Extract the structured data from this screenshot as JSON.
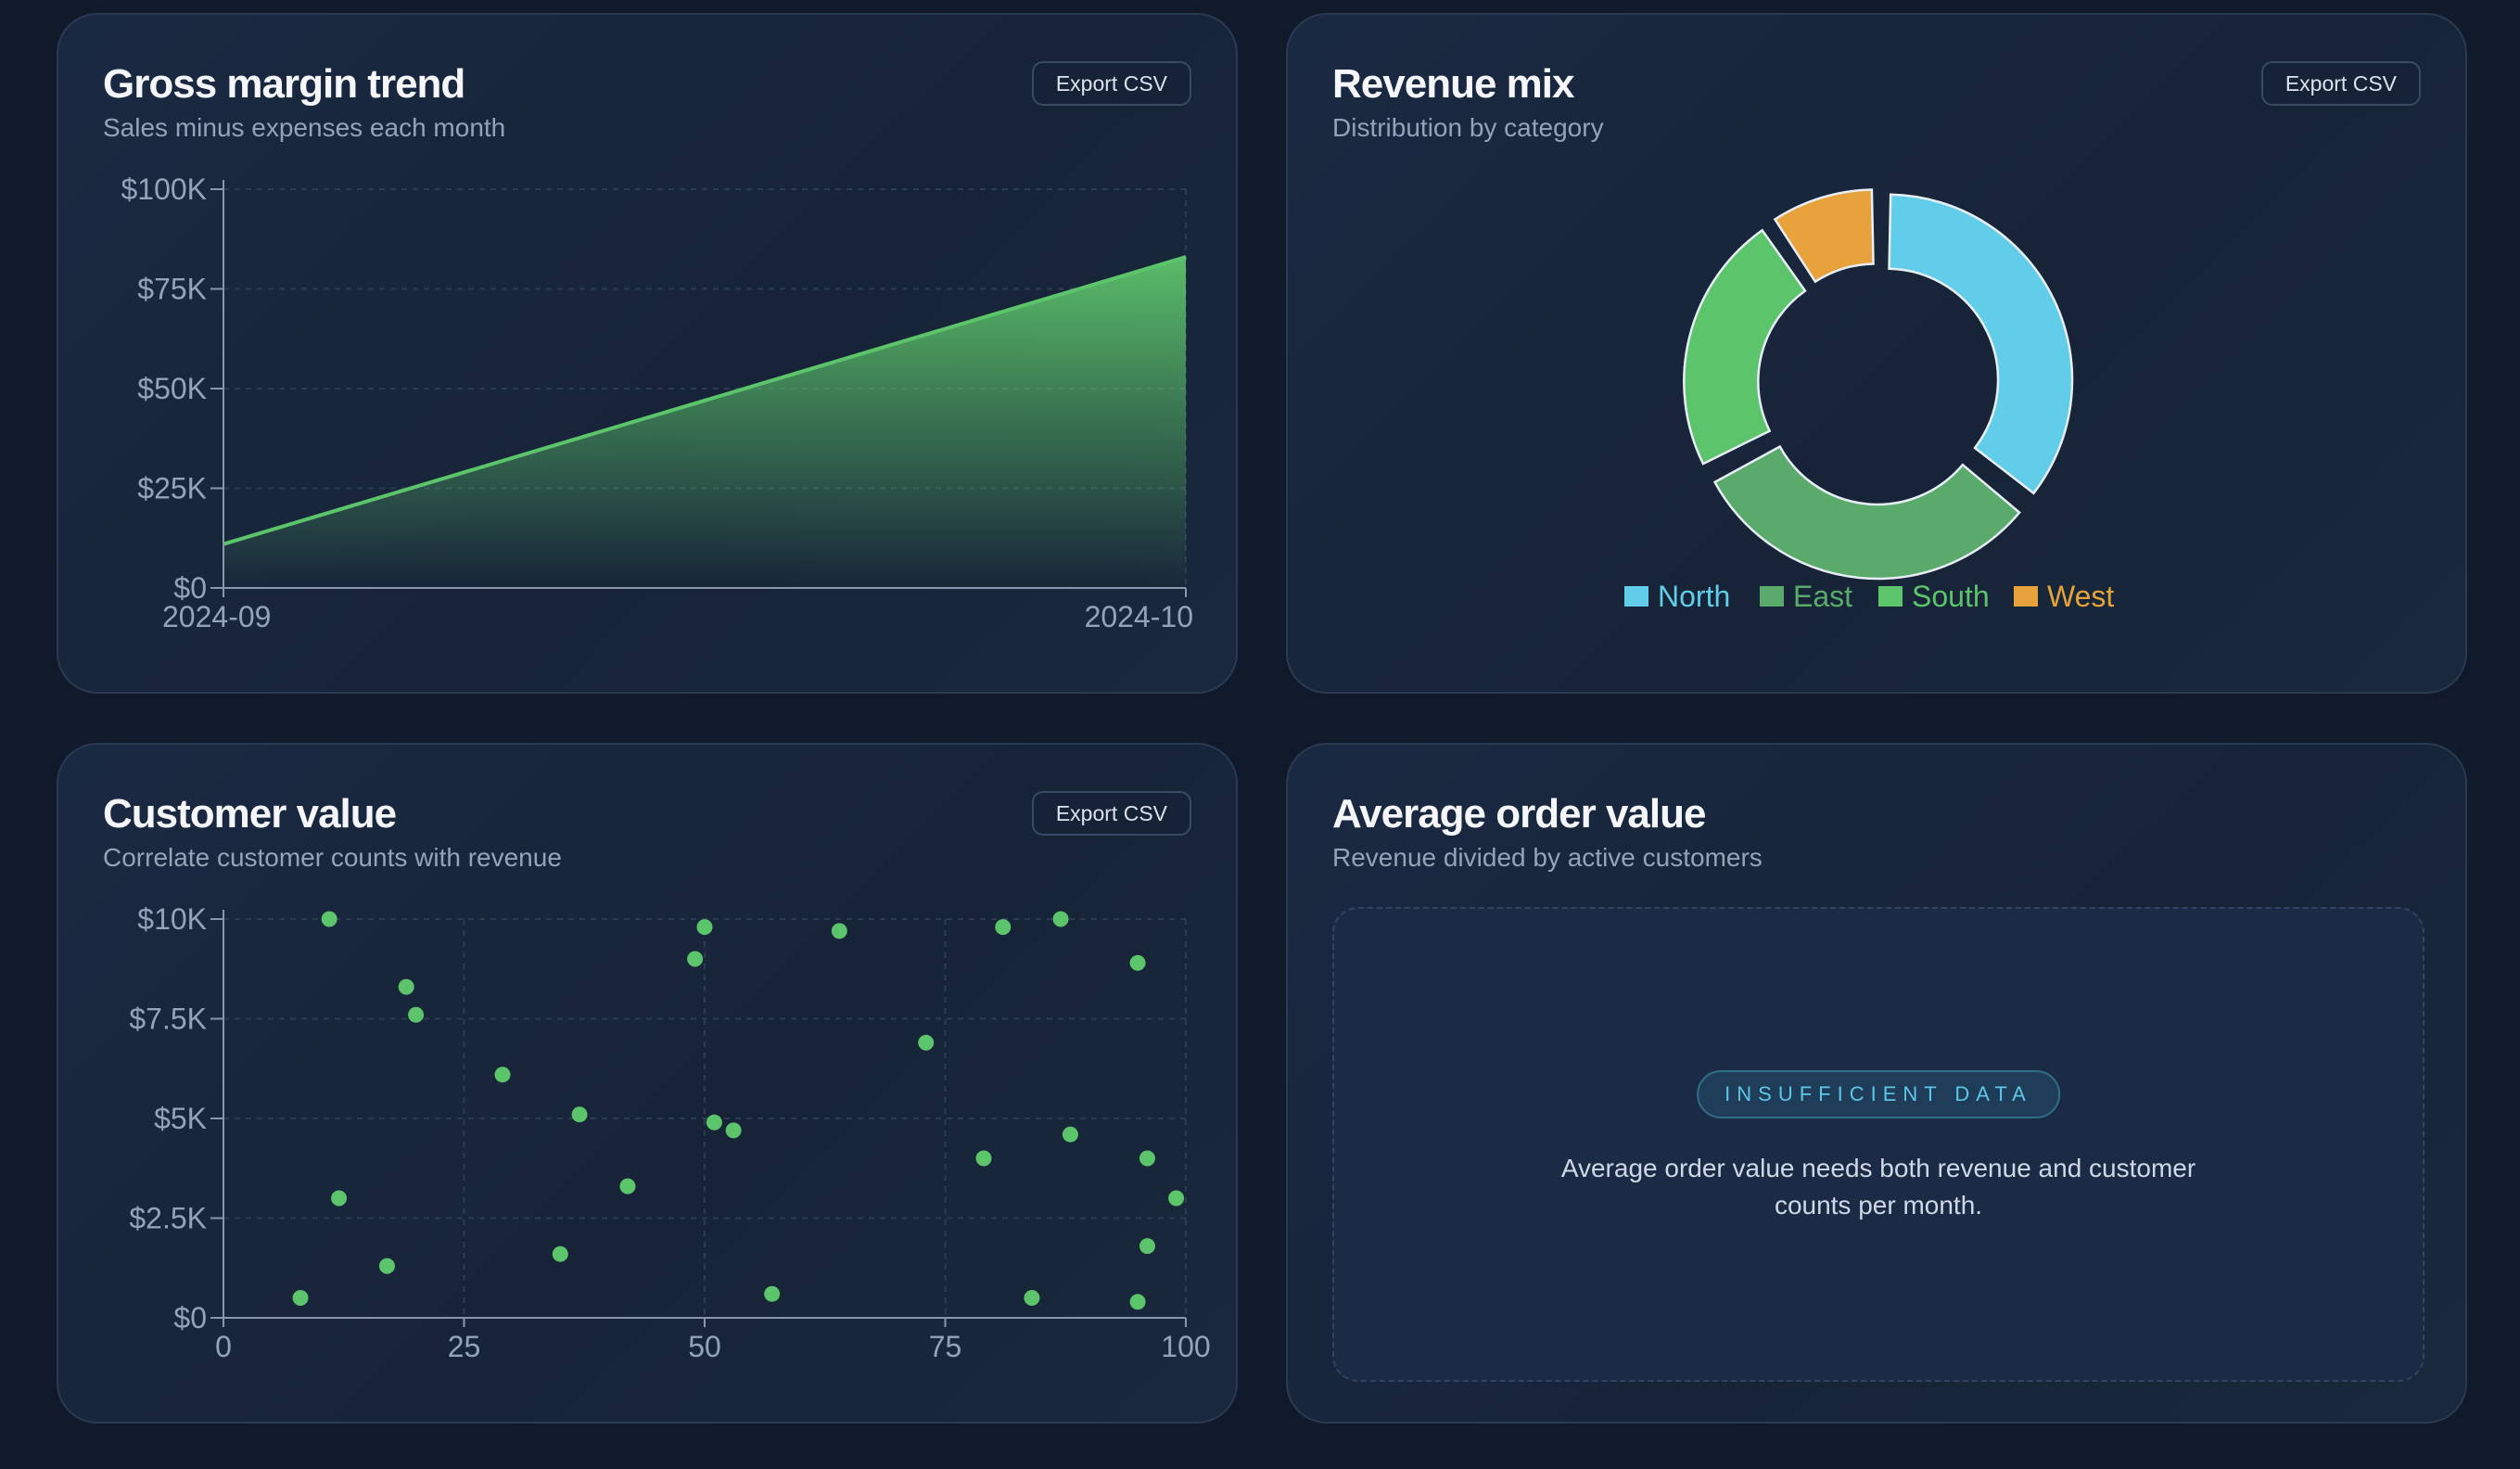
{
  "cards": {
    "gross_margin": {
      "title": "Gross margin trend",
      "subtitle": "Sales minus expenses each month",
      "export_label": "Export CSV"
    },
    "revenue_mix": {
      "title": "Revenue mix",
      "subtitle": "Distribution by category",
      "export_label": "Export CSV"
    },
    "customer_value": {
      "title": "Customer value",
      "subtitle": "Correlate customer counts with revenue",
      "export_label": "Export CSV"
    },
    "avg_order": {
      "title": "Average order value",
      "subtitle": "Revenue divided by active customers",
      "badge": "INSUFFICIENT DATA",
      "message": "Average order value needs both revenue and customer counts per month."
    }
  },
  "colors": {
    "green": "#5cc46a",
    "north": "#62cde9",
    "east": "#5aab6b",
    "south": "#5cc46a",
    "west": "#e8a23c"
  },
  "chart_data": [
    {
      "type": "area",
      "x": [
        "2024-09",
        "2024-10"
      ],
      "y": [
        11000,
        83000
      ],
      "ylim": [
        0,
        100000
      ],
      "yticks": [
        "$0",
        "$25K",
        "$50K",
        "$75K",
        "$100K"
      ],
      "ytick_values": [
        0,
        25000,
        50000,
        75000,
        100000
      ],
      "xticks": [
        "2024-09",
        "2024-10"
      ],
      "grid": true,
      "color": "#5cc46a"
    },
    {
      "type": "pie",
      "donut": true,
      "labels": [
        "North",
        "East",
        "South",
        "West"
      ],
      "values": [
        34,
        30,
        22,
        9
      ],
      "colors": [
        "#62cde9",
        "#5aab6b",
        "#5cc46a",
        "#e8a23c"
      ],
      "legend": "bottom"
    },
    {
      "type": "scatter",
      "xlim": [
        0,
        100
      ],
      "ylim": [
        0,
        10000
      ],
      "xticks": [
        "0",
        "25",
        "50",
        "75",
        "100"
      ],
      "xtick_values": [
        0,
        25,
        50,
        75,
        100
      ],
      "yticks": [
        "$0",
        "$2.5K",
        "$5K",
        "$7.5K",
        "$10K"
      ],
      "ytick_values": [
        0,
        2500,
        5000,
        7500,
        10000
      ],
      "grid": true,
      "color": "#5cc46a",
      "points": [
        [
          11,
          10000
        ],
        [
          19,
          8300
        ],
        [
          20,
          7600
        ],
        [
          12,
          3000
        ],
        [
          8,
          500
        ],
        [
          17,
          1300
        ],
        [
          29,
          6100
        ],
        [
          37,
          5100
        ],
        [
          42,
          3300
        ],
        [
          35,
          1600
        ],
        [
          50,
          9800
        ],
        [
          49,
          9000
        ],
        [
          51,
          4900
        ],
        [
          53,
          4700
        ],
        [
          57,
          600
        ],
        [
          64,
          9700
        ],
        [
          73,
          6900
        ],
        [
          81,
          9800
        ],
        [
          87,
          10000
        ],
        [
          95,
          8900
        ],
        [
          79,
          4000
        ],
        [
          88,
          4600
        ],
        [
          84,
          500
        ],
        [
          95,
          400
        ],
        [
          96,
          4000
        ],
        [
          96,
          1800
        ],
        [
          99,
          3000
        ]
      ]
    }
  ]
}
